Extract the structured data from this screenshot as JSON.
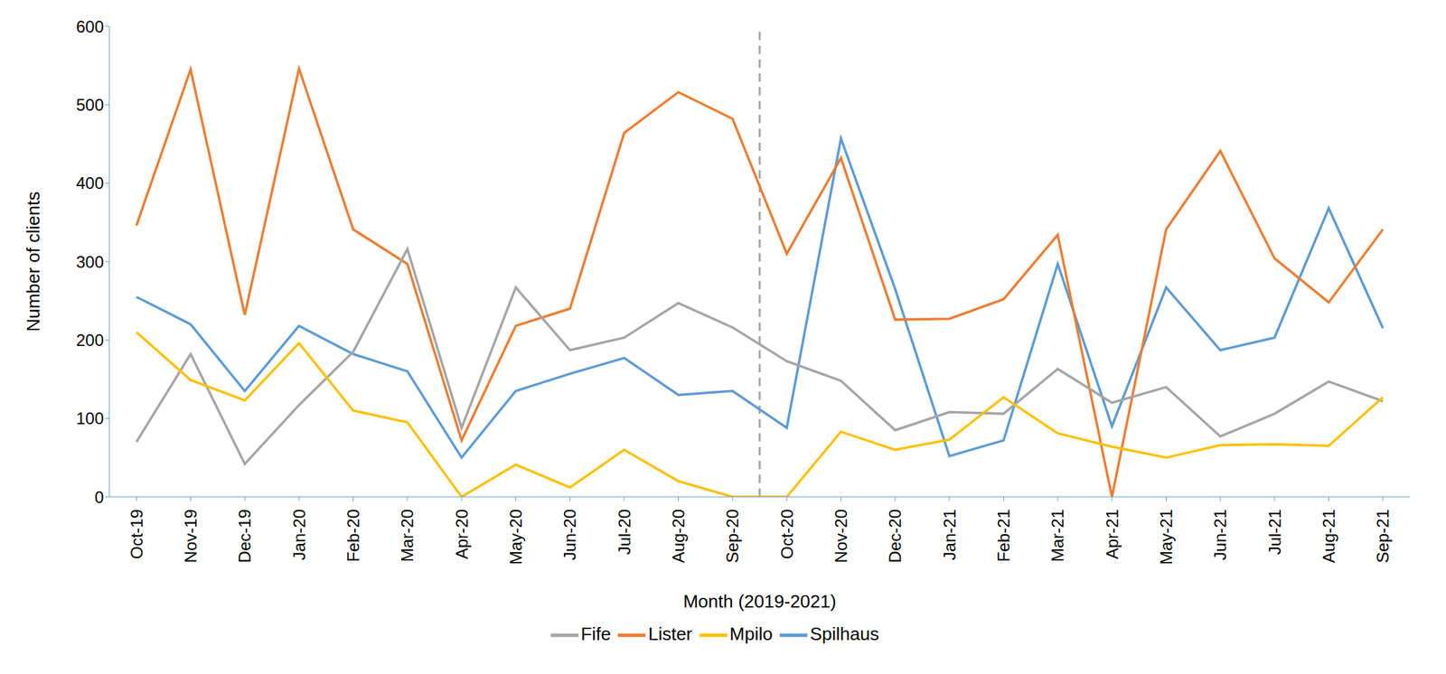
{
  "chart_data": {
    "type": "line",
    "x_label": "Month (2019-2021)",
    "y_label": "Number of clients",
    "categories": [
      "Oct-19",
      "Nov-19",
      "Dec-19",
      "Jan-20",
      "Feb-20",
      "Mar-20",
      "Apr-20",
      "May-20",
      "Jun-20",
      "Jul-20",
      "Aug-20",
      "Sep-20",
      "Oct-20",
      "Nov-20",
      "Dec-20",
      "Jan-21",
      "Feb-21",
      "Mar-21",
      "Apr-21",
      "May-21",
      "Jun-21",
      "Jul-21",
      "Aug-21",
      "Sep-21"
    ],
    "series": [
      {
        "name": "Spilhaus",
        "color": "#5b9bd5",
        "values": [
          255,
          220,
          135,
          218,
          182,
          160,
          50,
          135,
          157,
          177,
          130,
          135,
          88,
          457,
          265,
          52,
          72,
          297,
          90,
          267,
          187,
          203,
          368,
          215
        ]
      },
      {
        "name": "Lister",
        "color": "#ed7d31",
        "values": [
          346,
          545,
          232,
          546,
          341,
          297,
          72,
          218,
          240,
          464,
          516,
          482,
          310,
          432,
          226,
          227,
          252,
          334,
          0,
          341,
          441,
          304,
          248,
          341
        ]
      },
      {
        "name": "Fife",
        "color": "#a5a5a5",
        "values": [
          70,
          182,
          42,
          117,
          185,
          316,
          88,
          267,
          187,
          203,
          247,
          216,
          173,
          148,
          85,
          108,
          106,
          163,
          120,
          140,
          77,
          106,
          147,
          122
        ]
      },
      {
        "name": "Mpilo",
        "color": "#ffc000",
        "values": [
          210,
          149,
          123,
          196,
          110,
          95,
          0,
          41,
          12,
          60,
          20,
          0,
          0,
          83,
          60,
          73,
          127,
          81,
          64,
          50,
          66,
          67,
          65,
          127
        ]
      }
    ],
    "ylim": [
      0,
      600
    ],
    "yticks": [
      0,
      100,
      200,
      300,
      400,
      500,
      600
    ],
    "grid": false,
    "legend": "bottom"
  }
}
